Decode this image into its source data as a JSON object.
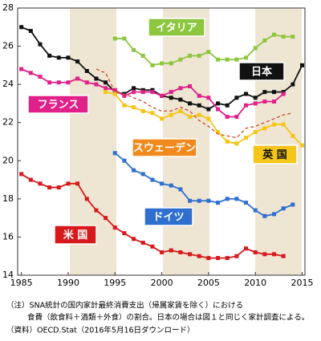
{
  "chart_data": {
    "type": "line",
    "x": [
      1985,
      1986,
      1987,
      1988,
      1989,
      1990,
      1991,
      1992,
      1993,
      1994,
      1995,
      1996,
      1997,
      1998,
      1999,
      2000,
      2001,
      2002,
      2003,
      2004,
      2005,
      2006,
      2007,
      2008,
      2009,
      2010,
      2011,
      2012,
      2013,
      2014,
      2015
    ],
    "xlim": [
      1984.6,
      2015.3
    ],
    "xticks": [
      1985,
      1990,
      1995,
      2000,
      2005,
      2010,
      2015
    ],
    "ylim": [
      14,
      28
    ],
    "yticks": [
      14,
      16,
      18,
      20,
      22,
      24,
      26,
      28
    ],
    "series": [
      {
        "name": "イタリア",
        "color": "#8dc63f",
        "marker": true,
        "values": [
          null,
          null,
          null,
          null,
          null,
          null,
          null,
          null,
          null,
          null,
          26.4,
          26.4,
          25.8,
          25.5,
          25.0,
          25.1,
          25.1,
          25.3,
          25.5,
          25.5,
          25.7,
          25.3,
          25.3,
          25.3,
          25.4,
          25.9,
          26.3,
          26.6,
          26.5,
          26.5,
          null
        ]
      },
      {
        "name": "日本",
        "color": "#111111",
        "marker": true,
        "values": [
          27.0,
          26.8,
          26.1,
          25.5,
          25.4,
          25.4,
          25.2,
          24.7,
          24.3,
          24.1,
          23.6,
          23.5,
          23.8,
          23.7,
          23.7,
          23.4,
          23.3,
          23.2,
          23.0,
          22.9,
          22.7,
          23.0,
          22.9,
          23.3,
          23.5,
          23.3,
          23.6,
          23.6,
          23.6,
          24.0,
          25.0
        ]
      },
      {
        "name": "フランス",
        "color": "#e0218a",
        "marker": true,
        "values": [
          24.8,
          24.6,
          24.4,
          24.1,
          24.1,
          24.1,
          24.3,
          24.1,
          24.0,
          23.8,
          23.7,
          23.4,
          23.6,
          23.6,
          23.6,
          23.4,
          23.6,
          23.8,
          23.9,
          23.4,
          23.3,
          22.7,
          22.3,
          22.3,
          22.9,
          23.0,
          23.1,
          23.1,
          23.5,
          null,
          null
        ]
      },
      {
        "name": "スウェーデン",
        "color": "#f5c518",
        "marker": true,
        "values": [
          null,
          null,
          null,
          null,
          null,
          null,
          null,
          null,
          null,
          23.6,
          23.5,
          22.9,
          22.8,
          22.6,
          22.5,
          22.2,
          22.4,
          22.6,
          22.3,
          22.4,
          22.2,
          21.5,
          21.0,
          20.9,
          21.2,
          21.5,
          21.7,
          21.9,
          21.9,
          21.3,
          20.8
        ]
      },
      {
        "name": "英 国",
        "color": "#c8401e",
        "marker": false,
        "dashed": true,
        "values": [
          null,
          null,
          null,
          null,
          null,
          null,
          null,
          null,
          24.8,
          24.6,
          23.6,
          23.5,
          23.3,
          23.1,
          22.8,
          22.6,
          22.6,
          22.8,
          22.6,
          22.1,
          21.8,
          21.4,
          21.3,
          21.2,
          21.7,
          21.8,
          22.0,
          22.2,
          22.4,
          22.5,
          null
        ]
      },
      {
        "name": "ドイツ",
        "color": "#2f6fd0",
        "marker": true,
        "values": [
          null,
          null,
          null,
          null,
          null,
          null,
          null,
          null,
          null,
          null,
          20.4,
          20.0,
          19.5,
          19.3,
          19.0,
          18.8,
          18.7,
          18.5,
          17.9,
          17.9,
          17.9,
          17.8,
          18.0,
          18.0,
          17.8,
          17.4,
          17.1,
          17.2,
          17.5,
          17.7,
          null
        ]
      },
      {
        "name": "米 国",
        "color": "#d7191c",
        "marker": true,
        "values": [
          19.3,
          19.0,
          18.8,
          18.6,
          18.6,
          18.8,
          18.8,
          18.0,
          17.4,
          17.0,
          16.5,
          16.2,
          15.9,
          15.7,
          15.5,
          15.2,
          15.3,
          15.2,
          15.1,
          15.0,
          14.9,
          14.9,
          14.9,
          15.0,
          15.4,
          15.2,
          15.1,
          15.1,
          15.0,
          null,
          null
        ]
      }
    ],
    "notes": [
      "（注）SNA統計の国内家計最終消費支出（帰属家賃を除く）における",
      "食費（飲食料＋酒類＋外食）の割合。日本の場合は図１と同じく家計調査による。",
      "（資料）OECD.Stat（2016年5月16日ダウンロード）"
    ]
  }
}
